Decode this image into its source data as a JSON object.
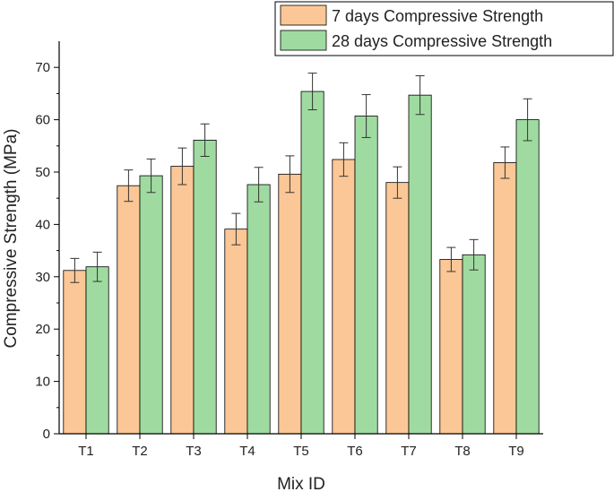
{
  "chart_data": {
    "type": "bar",
    "title": "",
    "xlabel": "Mix ID",
    "ylabel": "Compressive Strength (MPa)",
    "ylim": [
      0,
      75
    ],
    "yticks": [
      0,
      10,
      20,
      30,
      40,
      50,
      60,
      70
    ],
    "categories": [
      "T1",
      "T2",
      "T3",
      "T4",
      "T5",
      "T6",
      "T7",
      "T8",
      "T9"
    ],
    "legend_position": "top-right",
    "series": [
      {
        "name": "7 days Compressive Strength",
        "color": "#FBC796",
        "values": [
          31.2,
          47.4,
          51.1,
          39.1,
          49.6,
          52.4,
          48.0,
          33.3,
          51.8
        ],
        "errors": [
          2.3,
          3.0,
          3.5,
          3.0,
          3.5,
          3.2,
          3.0,
          2.3,
          3.0
        ]
      },
      {
        "name": "28 days Compressive Strength",
        "color": "#9FDBA0",
        "values": [
          31.9,
          49.3,
          56.1,
          47.6,
          65.4,
          60.7,
          64.7,
          34.2,
          60.0
        ],
        "errors": [
          2.8,
          3.2,
          3.1,
          3.3,
          3.5,
          4.1,
          3.7,
          2.9,
          4.0
        ]
      }
    ]
  }
}
